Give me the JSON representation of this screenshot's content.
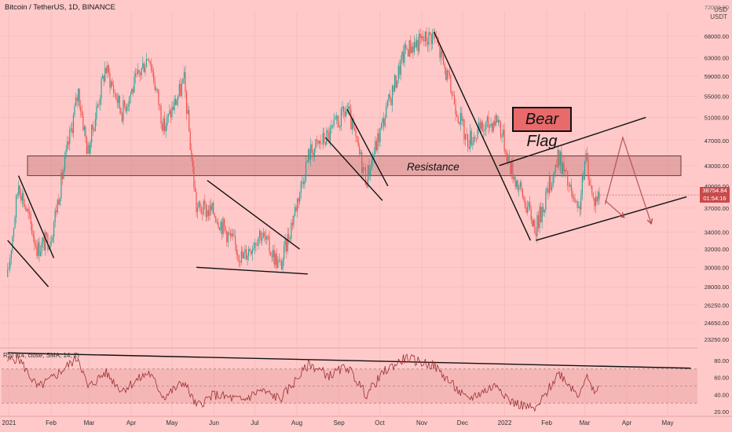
{
  "header": {
    "title": "Bitcoin / TetherUS, 1D, BINANCE",
    "top_tick": "72000.00",
    "currency": "USD",
    "currency_sub": "USDT"
  },
  "annotations": {
    "bear_flag": "Bear Flag",
    "resistance": "Resistance"
  },
  "price_badges": {
    "price": "38754.84",
    "countdown": "01:54:16"
  },
  "rsi": {
    "label": "RSI (14, close, SMA, 14, 2)"
  },
  "colors": {
    "background": "#ffc9c9",
    "bull": "#26a69a",
    "bear": "#ef5350",
    "resistance_zone": "#c77a7a",
    "rsi_line": "#9c2f2f"
  },
  "chart_data": {
    "type": "candlestick",
    "title": "Bitcoin / TetherUS, 1D, BINANCE",
    "y_axis": {
      "ticks": [
        68000.0,
        63000.0,
        59000.0,
        55000.0,
        51000.0,
        47000.0,
        43000.0,
        40000.0,
        37000.0,
        34000.0,
        32000.0,
        30000.0,
        28000.0,
        26250.0,
        24650.0,
        23250.0
      ],
      "tick_labels": [
        "68000.00",
        "63000.00",
        "59000.00",
        "55000.00",
        "51000.00",
        "47000.00",
        "43000.00",
        "40000.00",
        "37000.00",
        "34000.00",
        "32000.00",
        "30000.00",
        "28000.00",
        "26250.00",
        "24650.00",
        "23250.00"
      ],
      "scale": "log"
    },
    "x_axis": {
      "tick_labels": [
        "2021",
        "Feb",
        "Mar",
        "Apr",
        "May",
        "Jun",
        "Jul",
        "Aug",
        "Sep",
        "Oct",
        "Nov",
        "Dec",
        "2022",
        "Feb",
        "Mar",
        "Apr",
        "May"
      ]
    },
    "price_path": [
      {
        "date": "2020-12-31",
        "close": 29000
      },
      {
        "date": "2021-01-08",
        "close": 40500
      },
      {
        "date": "2021-01-22",
        "close": 32000
      },
      {
        "date": "2021-02-01",
        "close": 33500
      },
      {
        "date": "2021-02-21",
        "close": 56000
      },
      {
        "date": "2021-02-28",
        "close": 45000
      },
      {
        "date": "2021-03-13",
        "close": 61000
      },
      {
        "date": "2021-03-25",
        "close": 52000
      },
      {
        "date": "2021-04-14",
        "close": 64000
      },
      {
        "date": "2021-04-25",
        "close": 49000
      },
      {
        "date": "2021-05-10",
        "close": 58000
      },
      {
        "date": "2021-05-19",
        "close": 37000
      },
      {
        "date": "2021-06-01",
        "close": 36500
      },
      {
        "date": "2021-06-22",
        "close": 31000
      },
      {
        "date": "2021-07-05",
        "close": 34000
      },
      {
        "date": "2021-07-20",
        "close": 30000
      },
      {
        "date": "2021-08-10",
        "close": 45000
      },
      {
        "date": "2021-08-25",
        "close": 48000
      },
      {
        "date": "2021-09-07",
        "close": 52500
      },
      {
        "date": "2021-09-21",
        "close": 41000
      },
      {
        "date": "2021-10-05",
        "close": 51500
      },
      {
        "date": "2021-10-20",
        "close": 65000
      },
      {
        "date": "2021-11-10",
        "close": 68500
      },
      {
        "date": "2021-12-04",
        "close": 47000
      },
      {
        "date": "2021-12-27",
        "close": 51000
      },
      {
        "date": "2022-01-05",
        "close": 43000
      },
      {
        "date": "2022-01-24",
        "close": 34500
      },
      {
        "date": "2022-02-10",
        "close": 44500
      },
      {
        "date": "2022-02-24",
        "close": 36000
      },
      {
        "date": "2022-03-02",
        "close": 44500
      },
      {
        "date": "2022-03-07",
        "close": 38000
      },
      {
        "date": "2022-03-12",
        "close": 38754.84
      }
    ],
    "resistance_zone": [
      41500,
      44500
    ],
    "rsi_axis": {
      "ticks": [
        80.0,
        60.0,
        40.0,
        20.0
      ],
      "tick_labels": [
        "80.00",
        "60.00",
        "40.00",
        "20.00"
      ],
      "bands": [
        70,
        30
      ],
      "range": [
        15,
        90
      ]
    },
    "rsi_path": [
      {
        "date": "2020-12-31",
        "value": 80
      },
      {
        "date": "2021-01-08",
        "value": 83
      },
      {
        "date": "2021-01-22",
        "value": 48
      },
      {
        "date": "2021-02-01",
        "value": 58
      },
      {
        "date": "2021-02-21",
        "value": 84
      },
      {
        "date": "2021-02-28",
        "value": 48
      },
      {
        "date": "2021-03-13",
        "value": 66
      },
      {
        "date": "2021-03-25",
        "value": 45
      },
      {
        "date": "2021-04-14",
        "value": 66
      },
      {
        "date": "2021-04-25",
        "value": 37
      },
      {
        "date": "2021-05-10",
        "value": 55
      },
      {
        "date": "2021-05-19",
        "value": 26
      },
      {
        "date": "2021-06-01",
        "value": 40
      },
      {
        "date": "2021-06-22",
        "value": 33
      },
      {
        "date": "2021-07-05",
        "value": 45
      },
      {
        "date": "2021-07-20",
        "value": 35
      },
      {
        "date": "2021-08-10",
        "value": 76
      },
      {
        "date": "2021-08-25",
        "value": 62
      },
      {
        "date": "2021-09-07",
        "value": 73
      },
      {
        "date": "2021-09-21",
        "value": 40
      },
      {
        "date": "2021-10-05",
        "value": 68
      },
      {
        "date": "2021-10-20",
        "value": 83
      },
      {
        "date": "2021-11-10",
        "value": 74
      },
      {
        "date": "2021-12-04",
        "value": 34
      },
      {
        "date": "2021-12-27",
        "value": 52
      },
      {
        "date": "2022-01-05",
        "value": 32
      },
      {
        "date": "2022-01-24",
        "value": 22
      },
      {
        "date": "2022-02-10",
        "value": 66
      },
      {
        "date": "2022-02-24",
        "value": 40
      },
      {
        "date": "2022-03-02",
        "value": 62
      },
      {
        "date": "2022-03-07",
        "value": 43
      },
      {
        "date": "2022-03-12",
        "value": 47
      }
    ],
    "trendlines": [
      {
        "kind": "flag",
        "from": {
          "date": "2021-01-08",
          "price": 41500
        },
        "to": {
          "date": "2021-02-03",
          "price": 31000
        }
      },
      {
        "kind": "flag",
        "from": {
          "date": "2020-12-31",
          "price": 33000
        },
        "to": {
          "date": "2021-01-30",
          "price": 28000
        }
      },
      {
        "kind": "wedge",
        "from": {
          "date": "2021-05-27",
          "price": 40800
        },
        "to": {
          "date": "2021-08-03",
          "price": 32000
        }
      },
      {
        "kind": "wedge",
        "from": {
          "date": "2021-05-19",
          "price": 30000
        },
        "to": {
          "date": "2021-08-09",
          "price": 29300
        }
      },
      {
        "kind": "flag",
        "from": {
          "date": "2021-08-22",
          "price": 47500
        },
        "to": {
          "date": "2021-10-03",
          "price": 38000
        }
      },
      {
        "kind": "flag",
        "from": {
          "date": "2021-09-07",
          "price": 52500
        },
        "to": {
          "date": "2021-10-07",
          "price": 40000
        }
      },
      {
        "kind": "down",
        "from": {
          "date": "2021-11-10",
          "price": 69000
        },
        "to": {
          "date": "2022-01-20",
          "price": 33000
        }
      },
      {
        "kind": "channel",
        "from": {
          "date": "2021-12-28",
          "price": 43000
        },
        "to": {
          "date": "2022-04-15",
          "price": 51000
        }
      },
      {
        "kind": "channel",
        "from": {
          "date": "2022-01-24",
          "price": 33000
        },
        "to": {
          "date": "2022-05-15",
          "price": 38500
        }
      },
      {
        "kind": "rsi",
        "from": {
          "date": "2020-12-31",
          "value": 89
        },
        "to": {
          "date": "2022-05-18",
          "value": 71
        }
      }
    ],
    "projection": [
      {
        "date": "2022-03-16",
        "price": 37500
      },
      {
        "date": "2022-03-29",
        "price": 47500
      },
      {
        "date": "2022-04-19",
        "price": 35000
      }
    ],
    "projection_alt": [
      {
        "date": "2022-03-16",
        "price": 38000
      },
      {
        "date": "2022-03-30",
        "price": 35800
      }
    ]
  }
}
